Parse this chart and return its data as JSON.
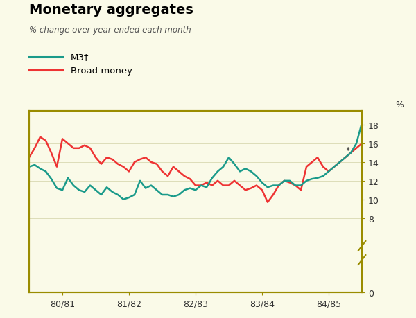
{
  "title": "Monetary aggregates",
  "subtitle": "% change over year ended each month",
  "legend_items": [
    "M3†",
    "Broad money"
  ],
  "background_color": "#fafae8",
  "plot_bg_color": "#fafae8",
  "border_color": "#9a8c00",
  "grid_color": "#ddddb8",
  "ylabel_right": "%",
  "yticks": [
    0,
    8,
    10,
    12,
    14,
    16,
    18
  ],
  "ylim": [
    0,
    19.5
  ],
  "xtick_labels": [
    "80/81",
    "81/82",
    "82/83",
    "83/84",
    "84/85"
  ],
  "m3_y": [
    13.5,
    13.7,
    13.3,
    13.0,
    12.2,
    11.2,
    11.0,
    12.3,
    11.5,
    11.0,
    10.8,
    11.5,
    11.0,
    10.5,
    11.3,
    10.8,
    10.5,
    10.0,
    10.2,
    10.5,
    12.0,
    11.2,
    11.5,
    11.0,
    10.5,
    10.5,
    10.3,
    10.5,
    11.0,
    11.2,
    11.0,
    11.5,
    11.3,
    12.3,
    13.0,
    13.5,
    14.5,
    13.8,
    13.0,
    13.3,
    13.0,
    12.5,
    11.8,
    11.3,
    11.5,
    11.5,
    12.0,
    12.0,
    11.5,
    11.5,
    12.0,
    12.2,
    12.3,
    12.5,
    13.0,
    13.5,
    14.0,
    14.5,
    15.0,
    16.0,
    18.2
  ],
  "broad_y": [
    14.5,
    15.5,
    16.7,
    16.3,
    15.0,
    13.5,
    16.5,
    16.0,
    15.5,
    15.5,
    15.8,
    15.5,
    14.5,
    13.8,
    14.5,
    14.3,
    13.8,
    13.5,
    13.0,
    14.0,
    14.3,
    14.5,
    14.0,
    13.8,
    13.0,
    12.5,
    13.5,
    13.0,
    12.5,
    12.2,
    11.5,
    11.5,
    11.8,
    11.5,
    12.0,
    11.5,
    11.5,
    12.0,
    11.5,
    11.0,
    11.2,
    11.5,
    11.0,
    9.7,
    10.5,
    11.5,
    12.0,
    11.8,
    11.5,
    11.0,
    13.5,
    14.0,
    14.5,
    13.5,
    13.0,
    13.5,
    14.0,
    14.5,
    15.0,
    15.5,
    16.0
  ],
  "m3_color": "#1a9a8a",
  "broad_color": "#ee3333",
  "linewidth": 1.8,
  "figsize": [
    6.0,
    4.6
  ],
  "dpi": 100
}
